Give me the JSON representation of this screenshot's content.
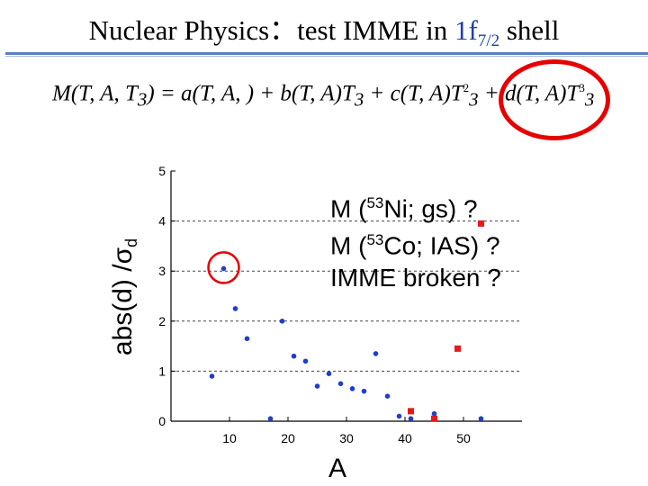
{
  "slide": {
    "title_prefix": "Nuclear Physics：test IMME in ",
    "title_orbital": "1f",
    "title_orbital_sub": "7/2",
    "title_suffix": " shell",
    "equation": {
      "lhs": "M(T, A, T",
      "lhs_sub": "3",
      "lhs_end": ") = a(T, A, ) + b(T, A)T",
      "t_sub": "3",
      "plus_c": " + c(T, A)T",
      "sq": "2",
      "plus_d": " + d(T, A)T",
      "cube": "3"
    },
    "annotations": [
      {
        "pre": "M (",
        "sup": "53",
        "post": "Ni; gs) ?"
      },
      {
        "pre": "M (",
        "sup": "53",
        "post": "Co; IAS) ?"
      },
      {
        "pre": "IMME broken ?",
        "sup": "",
        "post": ""
      }
    ],
    "colors": {
      "accent_rule": "#5b7fbf",
      "highlight": "#1f3ea6",
      "ring": "#e60000"
    }
  },
  "chart_data": {
    "type": "scatter",
    "xlabel": "A",
    "ylabel": "abs(d) /σ",
    "ylabel_sub": "d",
    "xlim": [
      0,
      60
    ],
    "ylim": [
      0,
      5
    ],
    "xticks": [
      10,
      20,
      30,
      40,
      50
    ],
    "yticks": [
      0,
      1,
      2,
      3,
      4,
      5
    ],
    "hgrid": [
      1,
      2,
      3,
      4
    ],
    "series": [
      {
        "marker": "circle",
        "color": "#1f3ecc",
        "points": [
          [
            7,
            0.9
          ],
          [
            9,
            3.05
          ],
          [
            11,
            2.25
          ],
          [
            13,
            1.65
          ],
          [
            17,
            0.05
          ],
          [
            19,
            2.0
          ],
          [
            21,
            1.3
          ],
          [
            23,
            1.2
          ],
          [
            25,
            0.7
          ],
          [
            27,
            0.95
          ],
          [
            29,
            0.75
          ],
          [
            31,
            0.65
          ],
          [
            33,
            0.6
          ],
          [
            35,
            1.35
          ],
          [
            37,
            0.5
          ],
          [
            39,
            0.1
          ],
          [
            41,
            0.05
          ],
          [
            45,
            0.15
          ],
          [
            53,
            0.05
          ]
        ]
      },
      {
        "marker": "square",
        "color": "#e61919",
        "points": [
          [
            41,
            0.2
          ],
          [
            45,
            0.05
          ],
          [
            49,
            1.45
          ],
          [
            53,
            3.95
          ]
        ]
      }
    ],
    "highlight": {
      "x": 9,
      "y": 3.05
    }
  }
}
